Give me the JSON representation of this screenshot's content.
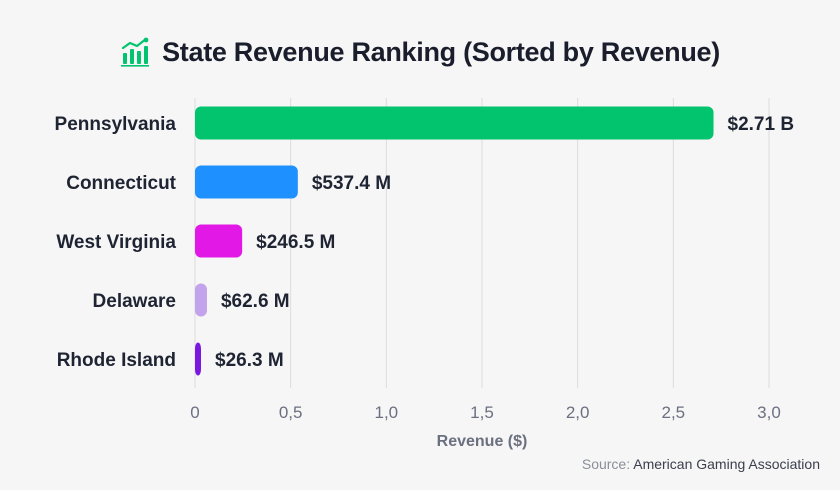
{
  "header": {
    "title": "State Revenue Ranking (Sorted by Revenue)",
    "icon": "growth-chart-icon"
  },
  "chart_data": {
    "type": "bar",
    "orientation": "horizontal",
    "title": "State Revenue Ranking (Sorted by Revenue)",
    "categories": [
      "Pennsylvania",
      "Connecticut",
      "West Virginia",
      "Delaware",
      "Rhode Island"
    ],
    "values": [
      2.71,
      0.5374,
      0.2465,
      0.0626,
      0.0263
    ],
    "value_labels": [
      "$2.71 B",
      "$537.4 M",
      "$246.5 M",
      "$62.6 M",
      "$26.3 M"
    ],
    "colors": [
      "#02c46e",
      "#1e90ff",
      "#e218e6",
      "#c3a4ec",
      "#7a18e0"
    ],
    "xlabel": "Revenue ($)",
    "ylabel": "",
    "xlim": [
      0,
      3.0
    ],
    "xticks": [
      0,
      0.5,
      1.0,
      1.5,
      2.0,
      2.5,
      3.0
    ],
    "xtick_labels": [
      "0",
      "0,5",
      "1,0",
      "1,5",
      "2,0",
      "2,5",
      "3,0"
    ],
    "grid": "vertical"
  },
  "footer": {
    "source_prefix": "Source: ",
    "source_name": "American Gaming Association"
  }
}
